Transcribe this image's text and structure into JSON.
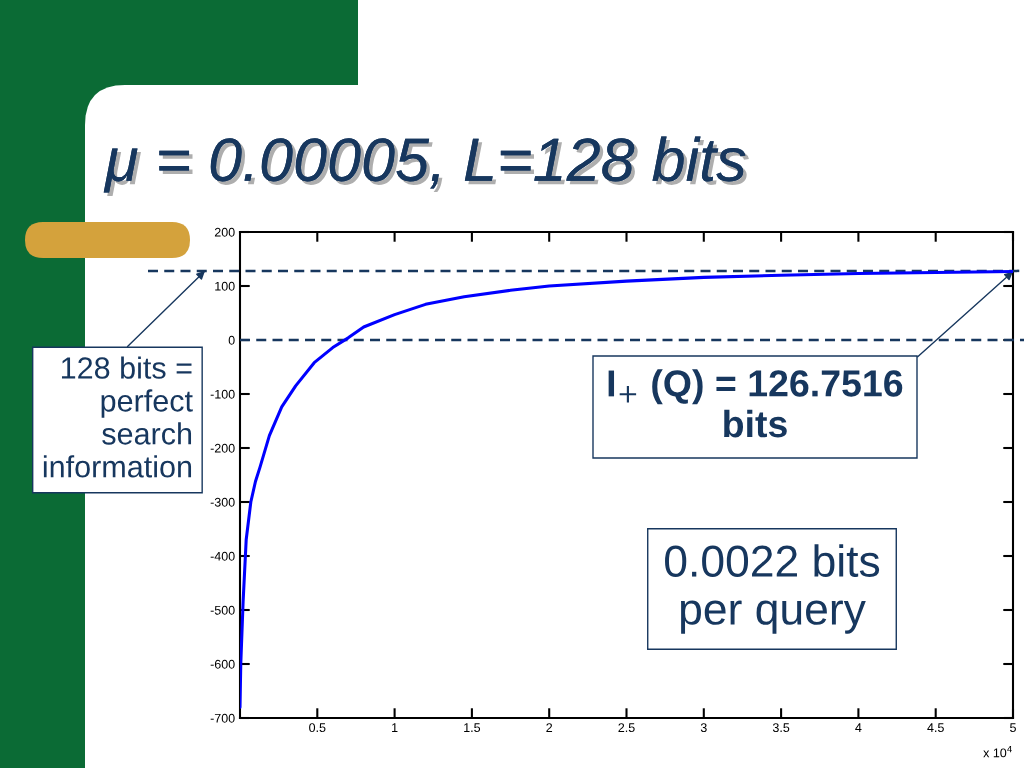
{
  "chart_data": {
    "type": "line",
    "title": "μ = 0.00005, L=128 bits",
    "x": [
      0,
      0.005,
      0.02,
      0.04,
      0.07,
      0.1,
      0.13,
      0.19,
      0.27,
      0.36,
      0.48,
      0.6,
      0.7,
      0.8,
      1,
      1.2,
      1.45,
      1.75,
      2,
      2.5,
      3,
      3.5,
      4,
      4.5,
      5
    ],
    "series": [
      {
        "color": "#0000ff",
        "values": [
          -680,
          -600,
          -485,
          -370,
          -300,
          -262,
          -235,
          -177,
          -124,
          -85,
          -42,
          -14,
          4,
          24,
          47,
          66,
          80,
          92,
          100,
          109,
          116,
          120,
          123,
          125,
          127
        ]
      }
    ],
    "xlim": [
      0,
      5
    ],
    "ylim": [
      -700,
      200
    ],
    "xticks": [
      0.5,
      1,
      1.5,
      2,
      2.5,
      3,
      3.5,
      4,
      4.5,
      5
    ],
    "yticks": [
      -700,
      -600,
      -500,
      -400,
      -300,
      -200,
      -100,
      0,
      100,
      200
    ],
    "line_style": "solid",
    "ref_lines": [
      {
        "axis": "y",
        "value": 128,
        "label": "128 bits =\nperfect\nsearch\ninformation",
        "color": "#17375e",
        "line_style": "dashed"
      },
      {
        "axis": "y",
        "value": 0,
        "color": "#17375e",
        "line_style": "dashed"
      }
    ],
    "annotations": [
      {
        "text": "I$_{+}$ (Q) = 126.7516\nbits",
        "x": 5,
        "y": 126.7516
      },
      "0.0022 bits\nper query",
      "x 10$^{4}$"
    ]
  }
}
